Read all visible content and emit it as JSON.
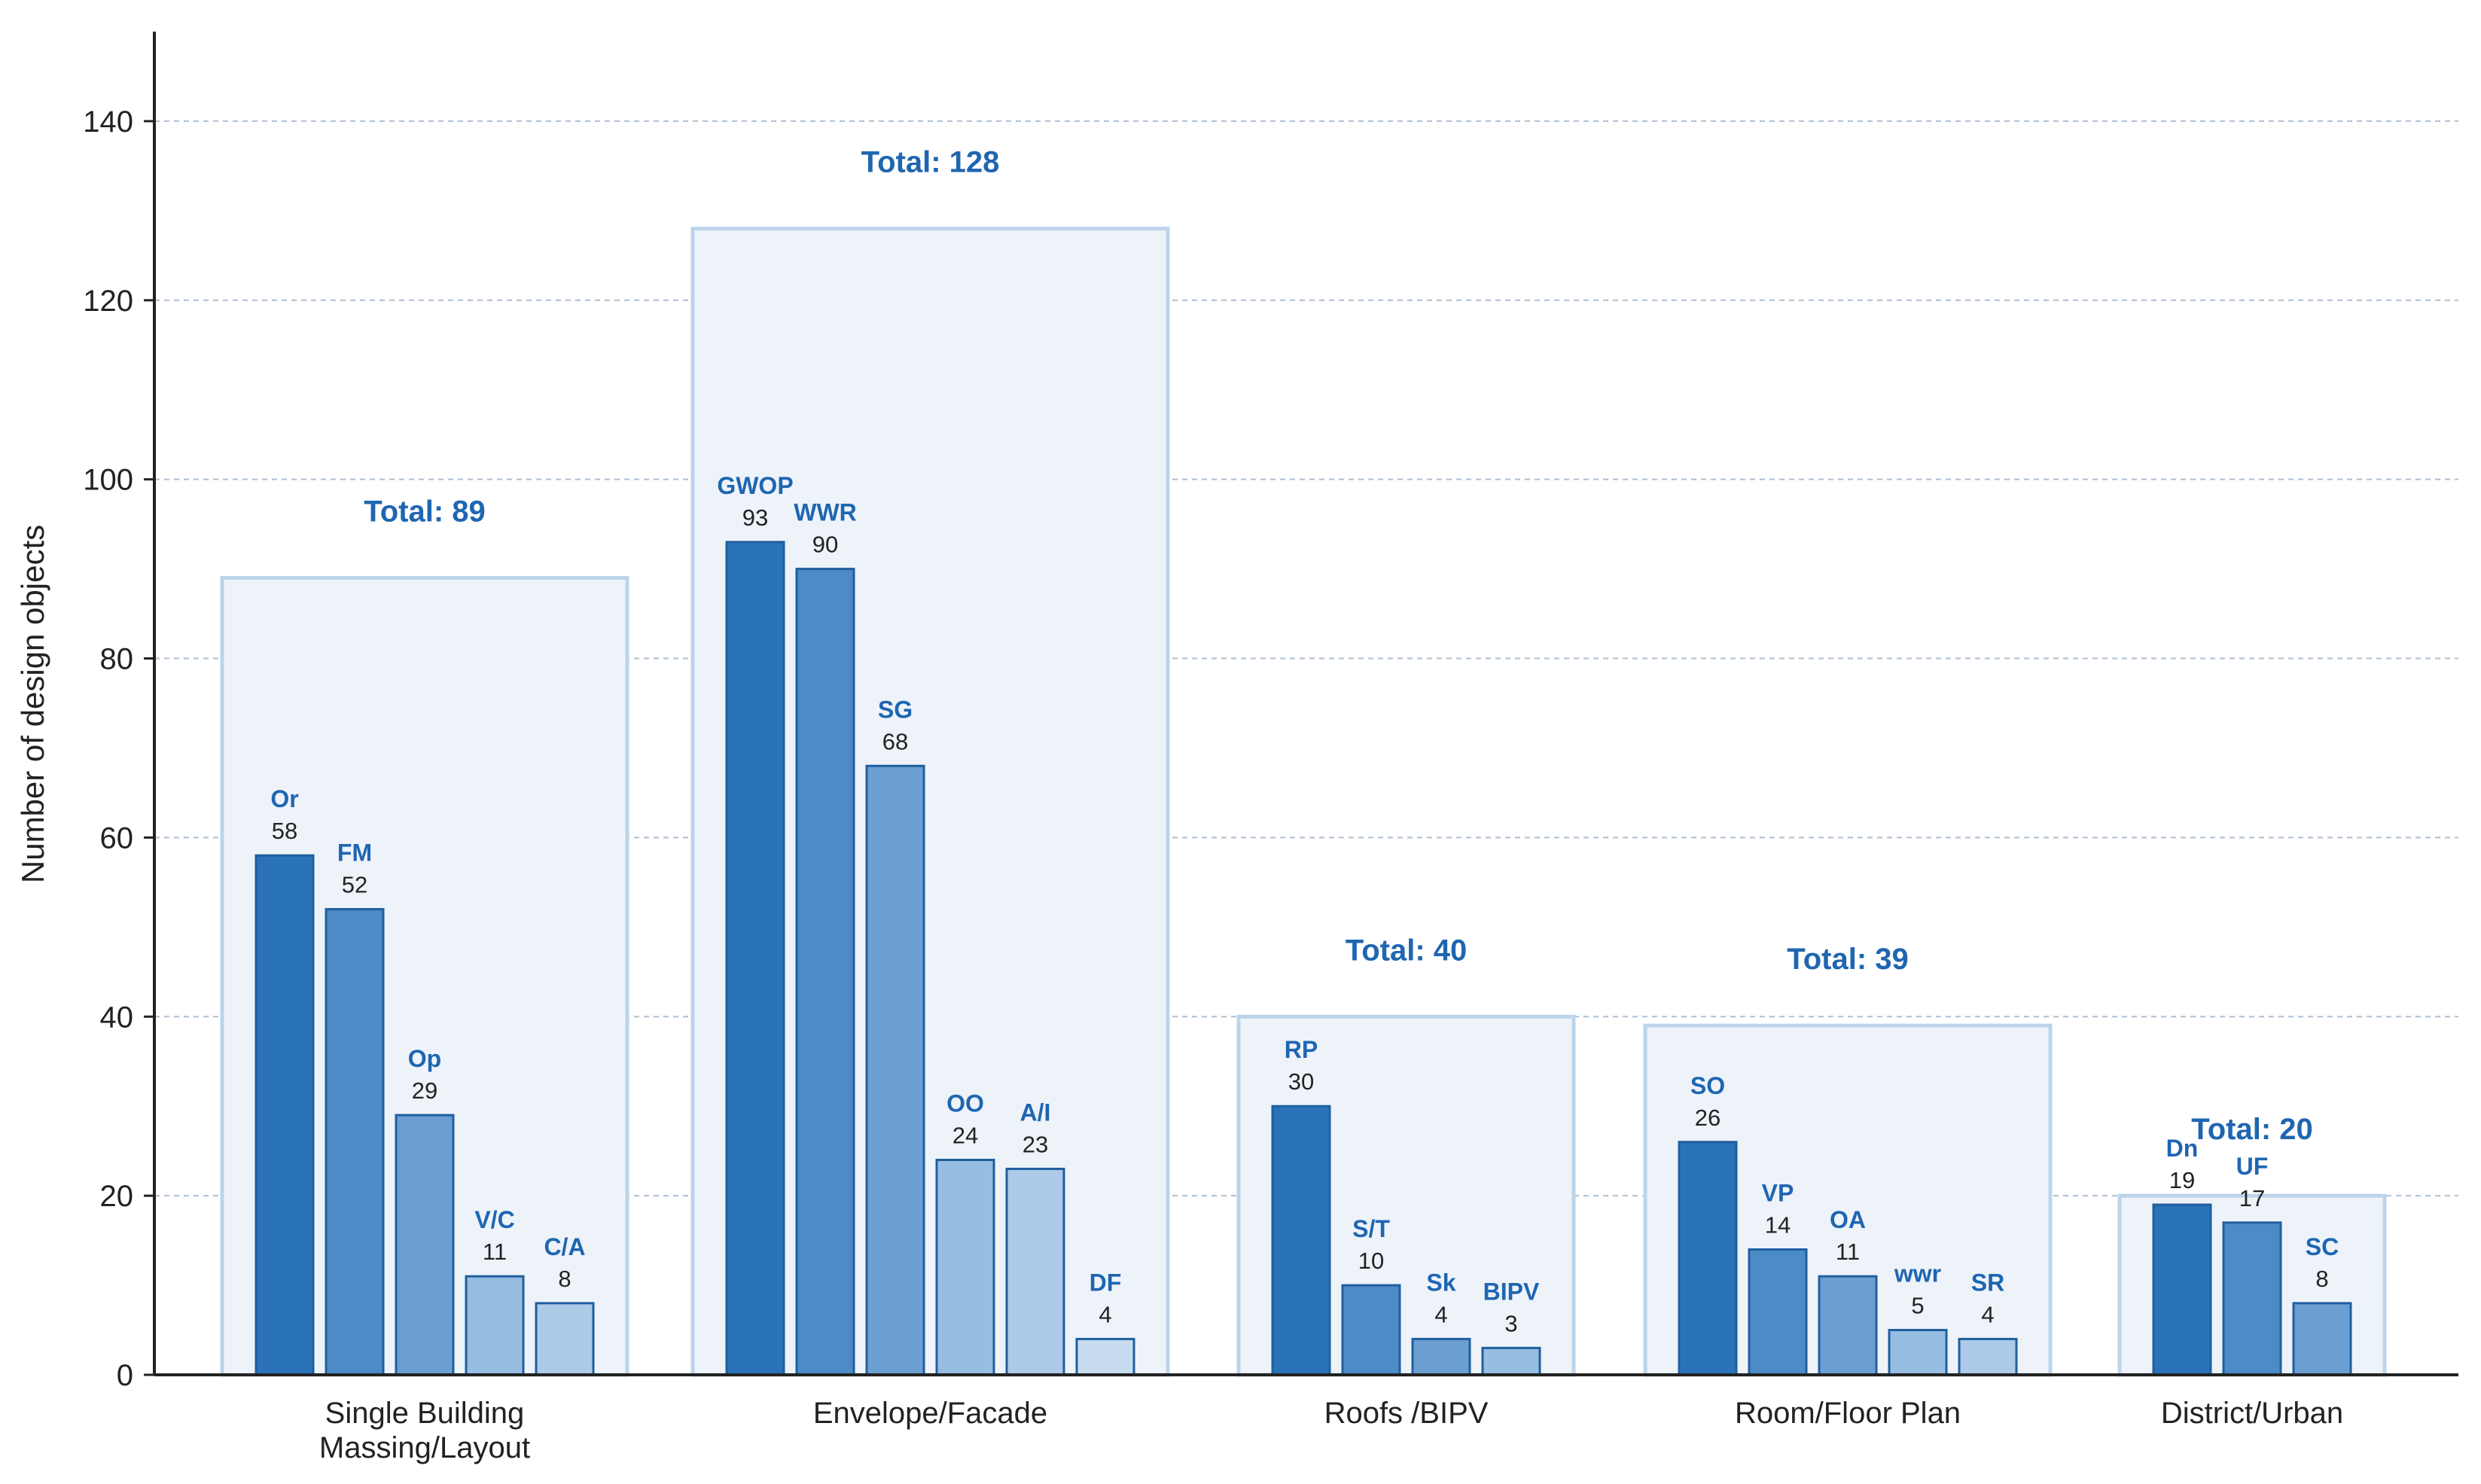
{
  "colors": {
    "shades": [
      "#2b73b8",
      "#4c8bc6",
      "#6b9fd1",
      "#97bde2",
      "#adcae8",
      "#c8dcef"
    ],
    "bar_stroke": "#1f5f9e",
    "group_box_fill": "#eef3fa",
    "group_box_stroke": "#bcd4ea",
    "total_label": "#1f66b1",
    "code_label": "#1f66b1",
    "grid": "#aebfd2",
    "axis": "#222222"
  },
  "chart_data": {
    "type": "bar",
    "title": "",
    "xlabel": "",
    "ylabel": "Number of design objects",
    "ylim": [
      0,
      150
    ],
    "yticks": [
      0,
      20,
      40,
      60,
      80,
      100,
      120,
      140
    ],
    "grid": "horizontal dashed",
    "groups": [
      {
        "label": "Single Building Massing/Layout",
        "label_lines": [
          "Single Building",
          "Massing/Layout"
        ],
        "total": 89,
        "total_text": "Total: 89",
        "bars": [
          {
            "code": "Or",
            "value": 58
          },
          {
            "code": "FM",
            "value": 52
          },
          {
            "code": "Op",
            "value": 29
          },
          {
            "code": "V/C",
            "value": 11
          },
          {
            "code": "C/A",
            "value": 8
          }
        ]
      },
      {
        "label": "Envelope/Facade",
        "label_lines": [
          "Envelope/Facade"
        ],
        "total": 128,
        "total_text": "Total: 128",
        "bars": [
          {
            "code": "GWOP",
            "value": 93
          },
          {
            "code": "WWR",
            "value": 90
          },
          {
            "code": "SG",
            "value": 68
          },
          {
            "code": "OO",
            "value": 24
          },
          {
            "code": "A/I",
            "value": 23
          },
          {
            "code": "DF",
            "value": 4
          }
        ]
      },
      {
        "label": "Roofs /BIPV",
        "label_lines": [
          "Roofs /BIPV"
        ],
        "total": 40,
        "total_text": "Total: 40",
        "bars": [
          {
            "code": "RP",
            "value": 30
          },
          {
            "code": "S/T",
            "value": 10
          },
          {
            "code": "Sk",
            "value": 4
          },
          {
            "code": "BIPV",
            "value": 3
          }
        ]
      },
      {
        "label": "Room/Floor Plan",
        "label_lines": [
          "Room/Floor Plan"
        ],
        "total": 39,
        "total_text": "Total: 39",
        "bars": [
          {
            "code": "SO",
            "value": 26
          },
          {
            "code": "VP",
            "value": 14
          },
          {
            "code": "OA",
            "value": 11
          },
          {
            "code": "wwr",
            "value": 5
          },
          {
            "code": "SR",
            "value": 4
          }
        ]
      },
      {
        "label": "District/Urban",
        "label_lines": [
          "District/Urban"
        ],
        "total": 20,
        "total_text": "Total: 20",
        "bars": [
          {
            "code": "Dn",
            "value": 19
          },
          {
            "code": "UF",
            "value": 17
          },
          {
            "code": "SC",
            "value": 8
          }
        ]
      }
    ]
  }
}
